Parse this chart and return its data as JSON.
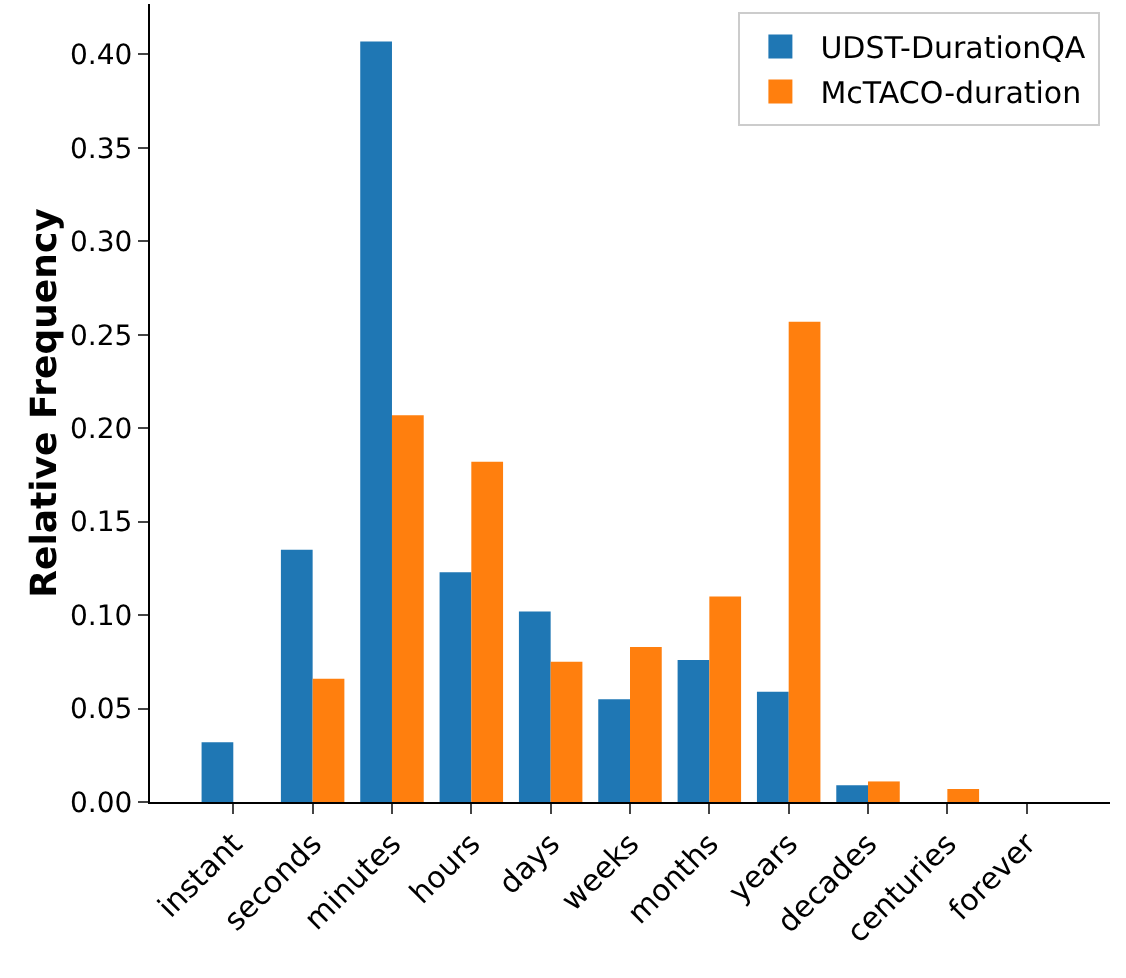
{
  "chart_data": {
    "type": "bar",
    "ylabel": "Relative Frequency",
    "categories": [
      "instant",
      "seconds",
      "minutes",
      "hours",
      "days",
      "weeks",
      "months",
      "years",
      "decades",
      "centuries",
      "forever"
    ],
    "series": [
      {
        "name": "UDST-DurationQA",
        "color": "#1f77b4",
        "values": [
          0.032,
          0.135,
          0.407,
          0.123,
          0.102,
          0.055,
          0.076,
          0.059,
          0.009,
          0,
          0
        ]
      },
      {
        "name": "McTACO-duration",
        "color": "#ff7f0e",
        "values": [
          0,
          0.066,
          0.207,
          0.182,
          0.075,
          0.083,
          0.11,
          0.257,
          0.011,
          0.007,
          0
        ]
      }
    ],
    "ylim": [
      0,
      0.427
    ],
    "yticks": [
      {
        "value": 0,
        "label": "0.00"
      },
      {
        "value": 0.05,
        "label": "0.05"
      },
      {
        "value": 0.1,
        "label": "0.10"
      },
      {
        "value": 0.15,
        "label": "0.15"
      },
      {
        "value": 0.2,
        "label": "0.20"
      },
      {
        "value": 0.25,
        "label": "0.25"
      },
      {
        "value": 0.3,
        "label": "0.30"
      },
      {
        "value": 0.35,
        "label": "0.35"
      },
      {
        "value": 0.4,
        "label": "0.40"
      }
    ],
    "grid": false,
    "legend": "top right"
  }
}
